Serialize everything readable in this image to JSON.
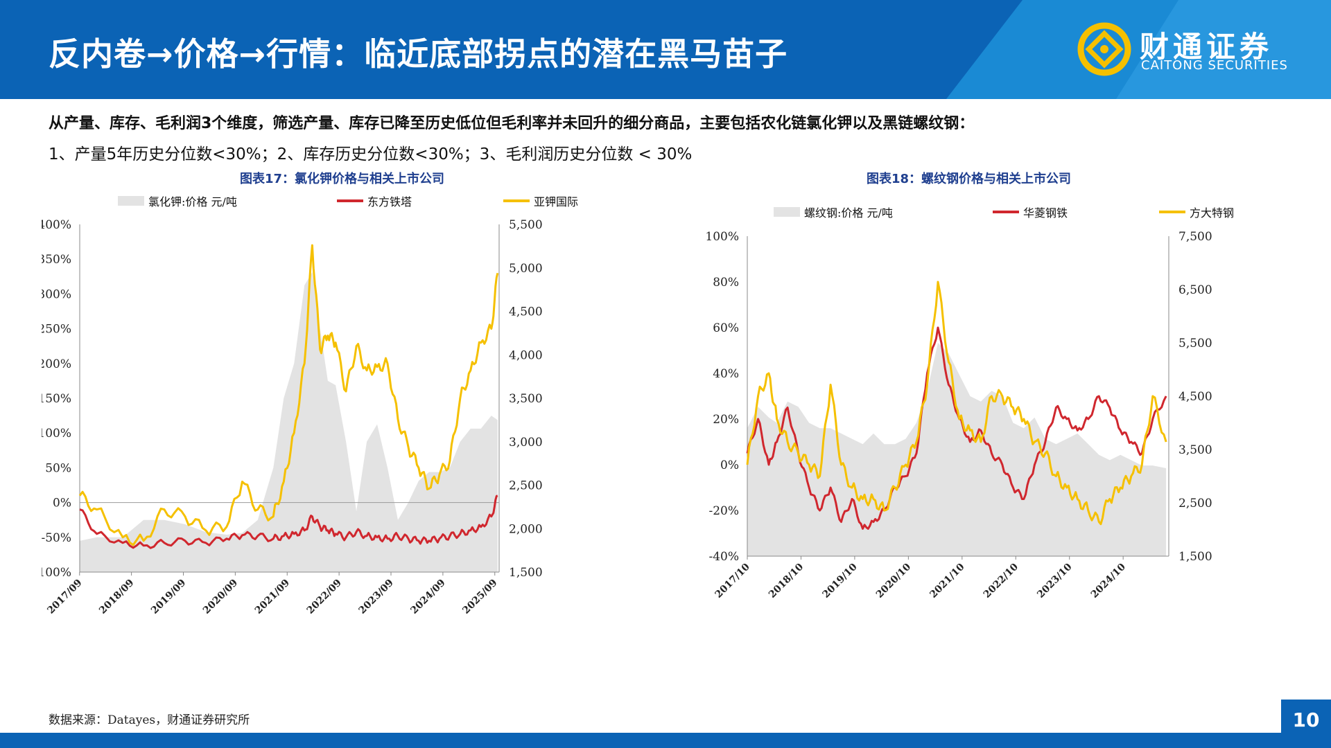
{
  "header": {
    "title": "反内卷→价格→行情：临近底部拐点的潜在黑马苗子",
    "logo_cn": "财通证券",
    "logo_en": "CAITONG SECURITIES"
  },
  "intro": {
    "line1": "从产量、库存、毛利润3个维度，筛选产量、库存已降至历史低位但毛利率并未回升的细分商品，主要包括农化链氯化钾以及黑链螺纹钢：",
    "line2": "1、产量5年历史分位数<30%；2、库存历史分位数<30%；3、毛利润历史分位数 < 30%"
  },
  "source": "数据来源：Datayes，财通证券研究所",
  "page_number": "10",
  "colors": {
    "primary": "#0b63b5",
    "area": "#e3e3e3",
    "red": "#d0272e",
    "gold": "#f5c000"
  },
  "chart_data": [
    {
      "type": "line",
      "title": "图表17：氯化钾价格与相关上市公司",
      "legend": [
        "氯化钾:价格 元/吨",
        "东方铁塔",
        "亚钾国际"
      ],
      "x_tick_labels": [
        "2017/09",
        "2018/09",
        "2019/09",
        "2020/09",
        "2021/09",
        "2022/09",
        "2023/09",
        "2024/09",
        "2025/09"
      ],
      "y_left_ticks": [
        "400%",
        "350%",
        "300%",
        "250%",
        "200%",
        "150%",
        "100%",
        "50%",
        "0%",
        "-50%",
        "-100%"
      ],
      "y_right_ticks": [
        "5,500",
        "5,000",
        "4,500",
        "4,000",
        "3,500",
        "3,000",
        "2,500",
        "2,000",
        "1,500"
      ],
      "ylim_left": [
        -100,
        400
      ],
      "ylim_right": [
        1500,
        5500
      ],
      "x": [
        2017.67,
        2018.0,
        2018.5,
        2018.9,
        2019.3,
        2019.7,
        2020.1,
        2020.5,
        2020.8,
        2021.1,
        2021.4,
        2021.6,
        2021.8,
        2022.0,
        2022.15,
        2022.3,
        2022.45,
        2022.6,
        2022.8,
        2023.0,
        2023.2,
        2023.4,
        2023.6,
        2023.8,
        2024.0,
        2024.2,
        2024.4,
        2024.6,
        2024.8,
        2025.0,
        2025.2,
        2025.4,
        2025.6,
        2025.72
      ],
      "series": [
        {
          "name": "氯化钾:价格 元/吨",
          "axis": "right",
          "values": [
            1860,
            1900,
            1900,
            2100,
            2100,
            2050,
            1960,
            1930,
            1950,
            2100,
            2700,
            3500,
            3900,
            4800,
            4950,
            4300,
            3700,
            3650,
            3000,
            2200,
            3000,
            3200,
            2700,
            2100,
            2300,
            2550,
            2650,
            2650,
            2700,
            3000,
            3150,
            3150,
            3300,
            3250
          ]
        },
        {
          "name": "东方铁塔",
          "axis": "left",
          "values": [
            -10,
            -45,
            -58,
            -62,
            -58,
            -55,
            -58,
            -52,
            -47,
            -48,
            -52,
            -48,
            -45,
            -40,
            -20,
            -35,
            -40,
            -45,
            -50,
            -42,
            -48,
            -50,
            -52,
            -48,
            -52,
            -55,
            -55,
            -52,
            -48,
            -45,
            -40,
            -35,
            -20,
            10
          ]
        },
        {
          "name": "亚钾国际",
          "axis": "left",
          "values": [
            10,
            -10,
            -50,
            -55,
            -10,
            -20,
            -40,
            -35,
            30,
            -10,
            -20,
            30,
            100,
            200,
            370,
            220,
            240,
            230,
            160,
            225,
            190,
            195,
            200,
            120,
            80,
            50,
            20,
            40,
            60,
            150,
            190,
            230,
            250,
            330
          ]
        }
      ]
    },
    {
      "type": "line",
      "title": "图表18：螺纹钢价格与相关上市公司",
      "legend": [
        "螺纹钢:价格 元/吨",
        "华菱钢铁",
        "方大特钢"
      ],
      "x_tick_labels": [
        "2017/10",
        "2018/10",
        "2019/10",
        "2020/10",
        "2021/10",
        "2022/10",
        "2023/10",
        "2024/10"
      ],
      "y_left_ticks": [
        "100%",
        "80%",
        "60%",
        "40%",
        "20%",
        "0%",
        "-20%",
        "-40%"
      ],
      "y_right_ticks": [
        "7,500",
        "6,500",
        "5,500",
        "4,500",
        "3,500",
        "2,500",
        "1,500"
      ],
      "ylim_left": [
        -40,
        100
      ],
      "ylim_right": [
        1500,
        7500
      ],
      "x": [
        2017.75,
        2017.95,
        2018.15,
        2018.3,
        2018.5,
        2018.7,
        2018.9,
        2019.1,
        2019.3,
        2019.5,
        2019.7,
        2019.9,
        2020.1,
        2020.3,
        2020.5,
        2020.7,
        2020.9,
        2021.1,
        2021.3,
        2021.5,
        2021.7,
        2021.9,
        2022.1,
        2022.3,
        2022.5,
        2022.7,
        2022.9,
        2023.1,
        2023.3,
        2023.5,
        2023.7,
        2023.9,
        2024.1,
        2024.3,
        2024.5,
        2024.7,
        2024.9,
        2025.1,
        2025.3,
        2025.55
      ],
      "series": [
        {
          "name": "螺纹钢:价格 元/吨",
          "axis": "right",
          "values": [
            3900,
            4300,
            4100,
            4000,
            4400,
            4300,
            4000,
            3900,
            3900,
            3800,
            3700,
            3600,
            3800,
            3600,
            3600,
            3700,
            4000,
            4600,
            5500,
            5300,
            4900,
            4500,
            4400,
            4600,
            4500,
            4000,
            3900,
            4100,
            3700,
            3600,
            3700,
            3800,
            3600,
            3400,
            3300,
            3400,
            3300,
            3200,
            3200,
            3150
          ]
        },
        {
          "name": "华菱钢铁",
          "axis": "left",
          "values": [
            5,
            20,
            0,
            10,
            25,
            5,
            -10,
            -20,
            -10,
            -25,
            -15,
            -28,
            -25,
            -20,
            -10,
            -5,
            5,
            40,
            60,
            35,
            20,
            10,
            15,
            5,
            0,
            -10,
            -15,
            0,
            10,
            25,
            20,
            15,
            20,
            30,
            25,
            15,
            10,
            5,
            20,
            30
          ]
        },
        {
          "name": "方大特钢",
          "axis": "left",
          "values": [
            0,
            30,
            40,
            20,
            10,
            5,
            0,
            -5,
            35,
            0,
            -10,
            -15,
            -15,
            -20,
            -10,
            0,
            10,
            35,
            80,
            45,
            20,
            15,
            10,
            30,
            30,
            25,
            20,
            10,
            5,
            -5,
            -10,
            -15,
            -20,
            -25,
            -15,
            -10,
            -5,
            0,
            30,
            10
          ]
        }
      ]
    }
  ]
}
